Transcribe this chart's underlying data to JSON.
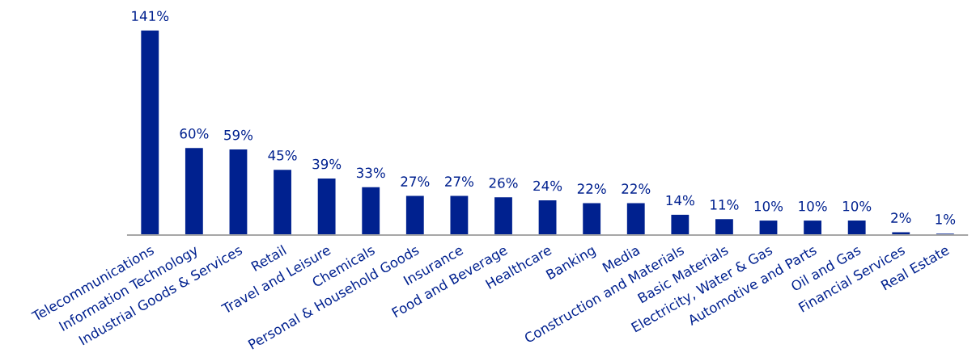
{
  "chart_data": {
    "type": "bar",
    "categories": [
      "Telecommunications",
      "Information Technology",
      "Industrial Goods & Services",
      "Retail",
      "Travel and Leisure",
      "Chemicals",
      "Personal & Household Goods",
      "Insurance",
      "Food and Beverage",
      "Healthcare",
      "Banking",
      "Media",
      "Construction and Materials",
      "Basic Materials",
      "Electricity, Water & Gas",
      "Automotive and Parts",
      "Oil and Gas",
      "Financial Services",
      "Real Estate"
    ],
    "values": [
      141,
      60,
      59,
      45,
      39,
      33,
      27,
      27,
      26,
      24,
      22,
      22,
      14,
      11,
      10,
      10,
      10,
      2,
      1
    ],
    "value_labels": [
      "141%",
      "60%",
      "59%",
      "45%",
      "39%",
      "33%",
      "27%",
      "27%",
      "26%",
      "24%",
      "22%",
      "22%",
      "14%",
      "11%",
      "10%",
      "10%",
      "10%",
      "2%",
      "1%"
    ],
    "color": "#00218f",
    "grid": false,
    "legend": false
  }
}
